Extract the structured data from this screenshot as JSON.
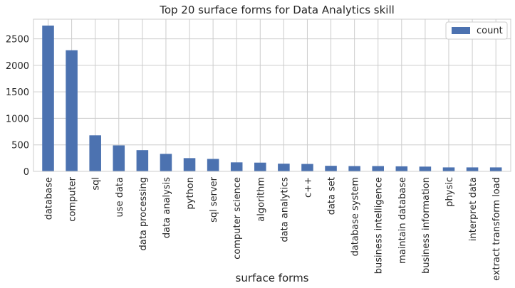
{
  "chart_data": {
    "type": "bar",
    "title": "Top 20 surface forms for Data Analytics skill",
    "xlabel": "surface forms",
    "ylabel": "",
    "ylim": [
      0,
      2870
    ],
    "yticks": [
      0,
      500,
      1000,
      1500,
      2000,
      2500
    ],
    "grid": true,
    "legend": "top-right",
    "bar_color": "#4c72b0",
    "categories": [
      "database",
      "computer",
      "sql",
      "use data",
      "data processing",
      "data analysis",
      "python",
      "sql server",
      "computer science",
      "algorithm",
      "data analytics",
      "c++",
      "data set",
      "database system",
      "business intelligence",
      "maintain database",
      "business information",
      "physic",
      "interpret data",
      "extract transform load"
    ],
    "series": [
      {
        "name": "count",
        "values": [
          2750,
          2285,
          680,
          490,
          400,
          330,
          250,
          235,
          170,
          165,
          145,
          140,
          105,
          100,
          100,
          95,
          90,
          75,
          75,
          75
        ]
      }
    ]
  }
}
